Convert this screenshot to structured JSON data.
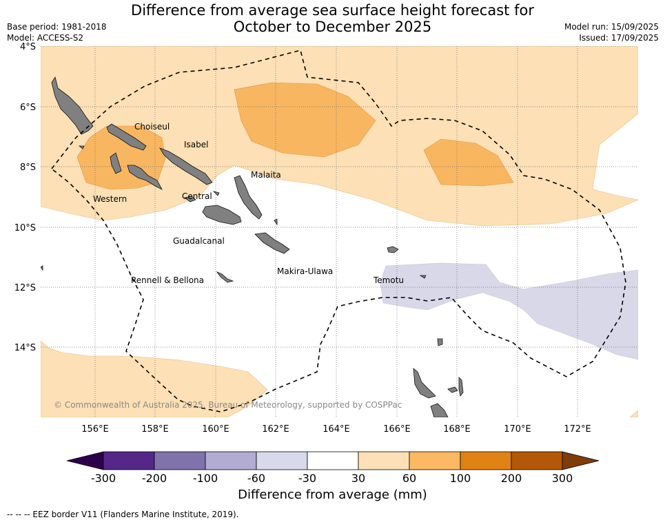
{
  "title": {
    "line1": "Difference from average sea surface height forecast for",
    "line2": "October to December 2025"
  },
  "meta_left": {
    "base_period": "Base period: 1981-2018",
    "model": "Model: ACCESS-S2"
  },
  "meta_right": {
    "model_run": "Model run: 15/09/2025",
    "issued": "Issued: 17/09/2025"
  },
  "map": {
    "lat_labels": [
      "4°S",
      "6°S",
      "8°S",
      "10°S",
      "12°S",
      "14°S"
    ],
    "lon_labels": [
      "156°E",
      "158°E",
      "160°E",
      "162°E",
      "164°E",
      "166°E",
      "168°E",
      "170°E",
      "172°E"
    ],
    "places": {
      "choiseul": "Choiseul",
      "isabel": "Isabel",
      "malaita": "Malaita",
      "western": "Western",
      "central": "Central",
      "guadalcanal": "Guadalcanal",
      "makira_ulawa": "Makira-Ulawa",
      "rennell_bellona": "Rennell & Bellona",
      "temotu": "Temotu"
    },
    "copyright": "© Commonwealth of Australia 2025, Bureau of Meteorology, supported by COSPPac",
    "colors": {
      "land": "#808080",
      "anomaly_30_60": "#fde0b5",
      "anomaly_60_100": "#f9b661",
      "anomaly_neg_60_30": "#d8d8e9",
      "eez_border": "#000000"
    }
  },
  "colorbar": {
    "ticks": [
      "-300",
      "-200",
      "-100",
      "-60",
      "-30",
      "30",
      "60",
      "100",
      "200",
      "300"
    ],
    "colors": [
      "#2d004b",
      "#542788",
      "#8073ac",
      "#b2abd2",
      "#d8daeb",
      "#ffffff",
      "#fee0b6",
      "#fdb863",
      "#e08214",
      "#b35806",
      "#7f3b08"
    ],
    "label": "Difference from average (mm)"
  },
  "footnote": "--  --  -- EEZ border V11 (Flanders Marine Institute, 2019)."
}
